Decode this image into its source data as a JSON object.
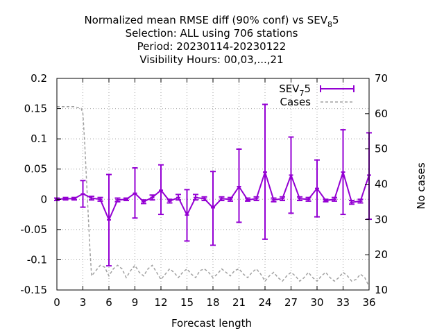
{
  "chart_data": {
    "type": "line",
    "title_lines": [
      [
        "Normalized mean RMSE diff (90% conf) vs SEV",
        "8",
        "5"
      ],
      [
        "Selection: ALL using   706 stations"
      ],
      [
        "Period: 20230114-20230122"
      ],
      [
        "Visibility   Hours:  00,03,...,21"
      ]
    ],
    "xlabel": "Forecast length",
    "y2label": "No cases",
    "xlim": [
      0,
      36
    ],
    "ylim": [
      -0.15,
      0.2
    ],
    "y2lim": [
      10,
      70
    ],
    "x_ticks": [
      "0",
      "3",
      "6",
      "9",
      "12",
      "15",
      "18",
      "21",
      "24",
      "27",
      "30",
      "33",
      "36"
    ],
    "y_ticks": [
      "-0.15",
      "-0.1",
      "-0.05",
      "0",
      "0.05",
      "0.1",
      "0.15",
      "0.2"
    ],
    "y2_ticks": [
      "10",
      "20",
      "30",
      "40",
      "50",
      "60",
      "70"
    ],
    "grid": true,
    "legend_position": "top-right",
    "series": [
      {
        "name_parts": [
          "SEV",
          "7",
          "5"
        ],
        "color": "#9400d3",
        "axis": "y",
        "style": "errorbars",
        "x": [
          0,
          1,
          2,
          3,
          4,
          5,
          6,
          7,
          8,
          9,
          10,
          11,
          12,
          13,
          14,
          15,
          16,
          17,
          18,
          19,
          20,
          21,
          22,
          23,
          24,
          25,
          26,
          27,
          28,
          29,
          30,
          31,
          32,
          33,
          34,
          35,
          36
        ],
        "values": [
          0,
          0.001,
          0.001,
          0.009,
          0.002,
          0,
          -0.034,
          -0.001,
          0,
          0.01,
          -0.004,
          0.003,
          0.015,
          -0.003,
          0.003,
          -0.026,
          0.003,
          0.001,
          -0.014,
          0.001,
          0,
          0.021,
          -0.001,
          0.001,
          0.045,
          -0.001,
          0.001,
          0.04,
          0.001,
          0,
          0.018,
          -0.002,
          0,
          0.045,
          -0.005,
          -0.003,
          0.04
        ],
        "low": [
          -0.002,
          -0.001,
          -0.001,
          -0.013,
          -0.001,
          -0.003,
          -0.11,
          -0.004,
          -0.002,
          -0.031,
          -0.007,
          -0.001,
          -0.025,
          -0.006,
          -0.001,
          -0.069,
          -0.001,
          -0.002,
          -0.076,
          -0.002,
          -0.003,
          -0.038,
          -0.003,
          -0.002,
          -0.066,
          -0.004,
          -0.002,
          -0.023,
          -0.002,
          -0.003,
          -0.029,
          -0.004,
          -0.003,
          -0.025,
          -0.008,
          -0.006,
          -0.033
        ],
        "high": [
          0.002,
          0.003,
          0.003,
          0.031,
          0.005,
          0.003,
          0.041,
          0.002,
          0.002,
          0.052,
          -0.001,
          0.007,
          0.057,
          0,
          0.008,
          0.016,
          0.008,
          0.004,
          0.046,
          0.004,
          0.003,
          0.083,
          0.002,
          0.004,
          0.157,
          0.002,
          0.004,
          0.103,
          0.004,
          0.003,
          0.065,
          0,
          0.003,
          0.115,
          -0.002,
          0,
          0.11
        ]
      },
      {
        "name": "Cases",
        "color": "#a0a0a0",
        "axis": "y2",
        "style": "dashed",
        "x": [
          0,
          1,
          2,
          2.8,
          3,
          3.2,
          3.4,
          3.6,
          3.8,
          4,
          4.5,
          5,
          5.5,
          6,
          6.5,
          7,
          7.5,
          8,
          8.5,
          9,
          9.5,
          10,
          10.5,
          11,
          11.5,
          12,
          12.5,
          13,
          13.5,
          14,
          14.5,
          15,
          15.5,
          16,
          16.5,
          17,
          17.5,
          18,
          18.5,
          19,
          19.5,
          20,
          20.5,
          21,
          21.5,
          22,
          22.5,
          23,
          23.5,
          24,
          24.5,
          25,
          25.5,
          26,
          26.5,
          27,
          27.5,
          28,
          28.5,
          29,
          29.5,
          30,
          30.5,
          31,
          31.5,
          32,
          32.5,
          33,
          33.5,
          34,
          34.5,
          35,
          35.5,
          36
        ],
        "values": [
          62,
          62,
          62,
          61.5,
          60,
          52,
          42,
          32,
          22,
          14,
          15.5,
          17,
          16.5,
          14,
          16,
          17,
          16,
          13.5,
          15.5,
          17,
          15,
          14,
          16,
          17,
          15,
          13,
          14.5,
          16,
          15,
          13.5,
          15,
          16,
          14.5,
          13.5,
          15.5,
          16,
          15,
          13.5,
          14.5,
          16,
          15,
          14,
          15.5,
          16,
          14.5,
          13.5,
          15,
          16,
          14.5,
          12.5,
          14,
          15,
          13.5,
          12.5,
          14,
          15,
          14,
          12.5,
          13.5,
          15,
          13.5,
          12.5,
          14,
          15,
          13.5,
          12.5,
          13.5,
          15,
          14,
          12.5,
          13,
          14.5,
          13.5,
          11
        ]
      }
    ]
  }
}
